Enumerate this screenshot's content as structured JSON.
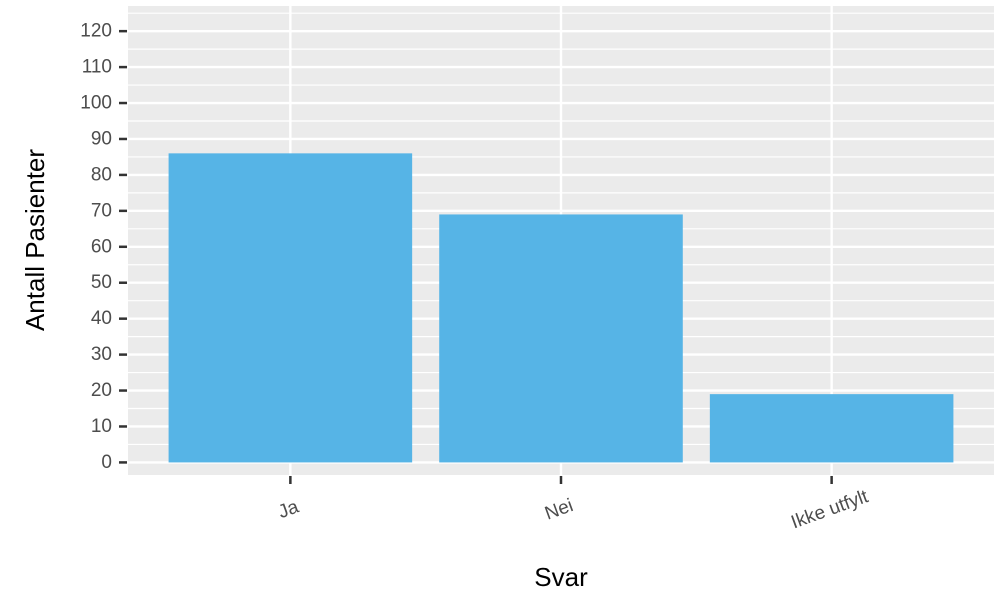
{
  "chart_data": {
    "type": "bar",
    "title": "",
    "xlabel": "Svar",
    "ylabel": "Antall Pasienter",
    "categories": [
      "Ja",
      "Nei",
      "Ikke utfylt"
    ],
    "values": [
      86,
      69,
      19
    ],
    "ylim": [
      -3.5,
      127
    ],
    "yticks": [
      0,
      10,
      20,
      30,
      40,
      50,
      60,
      70,
      80,
      90,
      100,
      110,
      120
    ],
    "ytick_labels": [
      "0",
      "10",
      "20",
      "30",
      "40",
      "50",
      "60",
      "70",
      "80",
      "90",
      "100",
      "110",
      "120"
    ],
    "grid": true,
    "legend": "none",
    "colors": {
      "bar": "#56b4e6",
      "panel_background": "#ebebeb",
      "grid": "#ffffff",
      "tick": "#333333",
      "tick_label": "#4d4d4d"
    }
  }
}
